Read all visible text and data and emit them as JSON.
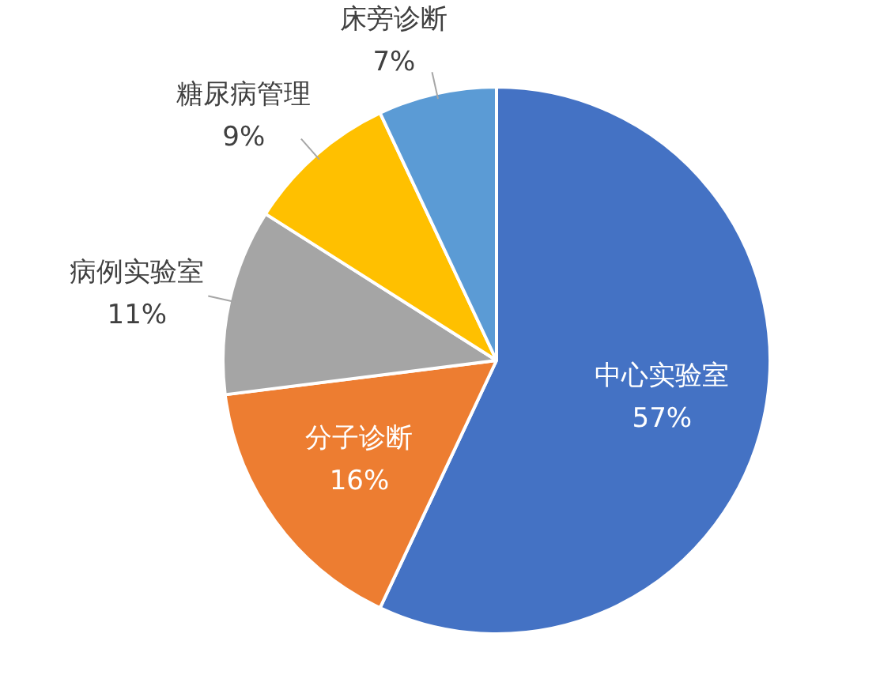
{
  "chart_data": {
    "type": "pie",
    "categories": [
      "中心实验室",
      "分子诊断",
      "病例实验室",
      "糖尿病管理",
      "床旁诊断"
    ],
    "values": [
      57,
      16,
      11,
      9,
      7
    ],
    "value_labels": [
      "57%",
      "16%",
      "11%",
      "9%",
      "7%"
    ],
    "colors": [
      "#4472c4",
      "#ed7d31",
      "#a5a5a5",
      "#ffc000",
      "#5b9bd5"
    ],
    "legend": false
  }
}
